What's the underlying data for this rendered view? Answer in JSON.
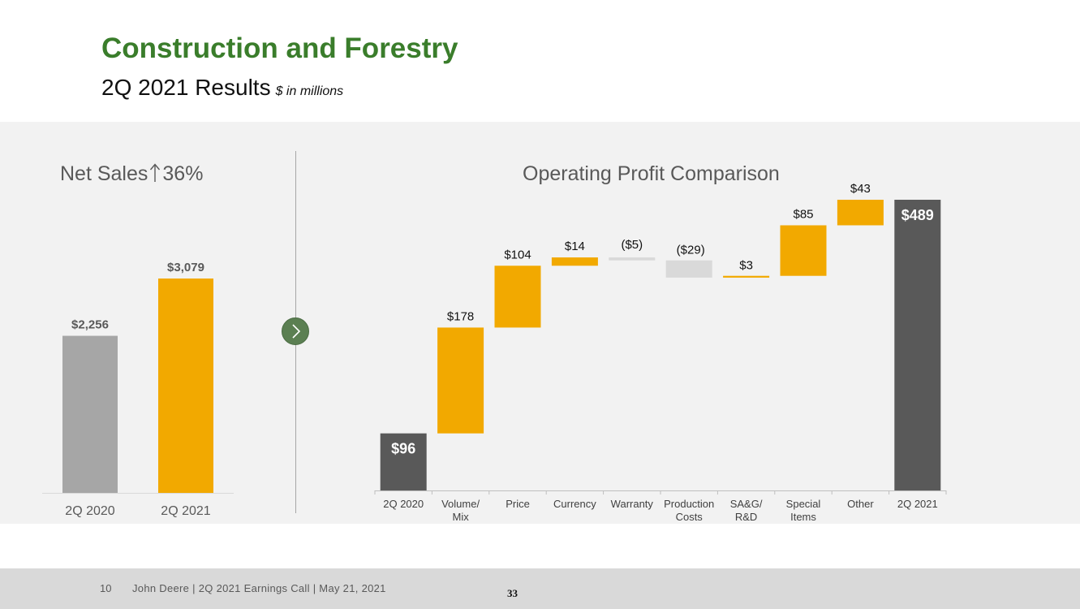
{
  "header": {
    "title": "Construction and Forestry",
    "subtitle": "2Q 2021 Results",
    "unit_note": "$ in millions"
  },
  "colors": {
    "title_green": "#3a7d2b",
    "accent_orange": "#f2a900",
    "prior_gray": "#a6a6a6",
    "total_dark": "#595959",
    "negative_light": "#d9d9d9"
  },
  "nav": {
    "next_icon": "chevron-right-icon"
  },
  "chart_data": [
    {
      "type": "bar",
      "title": "Net Sales",
      "title_change_arrow": "up-arrow",
      "title_change": "36%",
      "categories": [
        "2Q 2020",
        "2Q 2021"
      ],
      "values": [
        2256,
        3079
      ],
      "value_labels": [
        "$2,256",
        "$3,079"
      ],
      "ylim": [
        0,
        3079
      ],
      "grid": false
    },
    {
      "type": "waterfall",
      "title": "Operating Profit Comparison",
      "categories": [
        "2Q 2020",
        "Volume/ Mix",
        "Price",
        "Currency",
        "Warranty",
        "Production Costs",
        "SA&G/ R&D",
        "Special Items",
        "Other",
        "2Q 2021"
      ],
      "category_lines": [
        [
          "2Q 2020"
        ],
        [
          "Volume/",
          "Mix"
        ],
        [
          "Price"
        ],
        [
          "Currency"
        ],
        [
          "Warranty"
        ],
        [
          "Production",
          "Costs"
        ],
        [
          "SA&G/",
          "R&D"
        ],
        [
          "Special",
          "Items"
        ],
        [
          "Other"
        ],
        [
          "2Q 2021"
        ]
      ],
      "values": [
        96,
        178,
        104,
        14,
        -5,
        -29,
        3,
        85,
        43,
        489
      ],
      "kinds": [
        "total",
        "delta",
        "delta",
        "delta",
        "delta",
        "delta",
        "delta",
        "delta",
        "delta",
        "total"
      ],
      "value_labels": [
        "$96",
        "$178",
        "$104",
        "$14",
        "($5)",
        "($29)",
        "$3",
        "$85",
        "$43",
        "$489"
      ],
      "ylim": [
        0,
        489
      ],
      "grid": false
    }
  ],
  "footer": {
    "page_number": "10",
    "text": "John Deere | 2Q 2021 Earnings Call | May 21, 2021",
    "slide_number": "33"
  }
}
